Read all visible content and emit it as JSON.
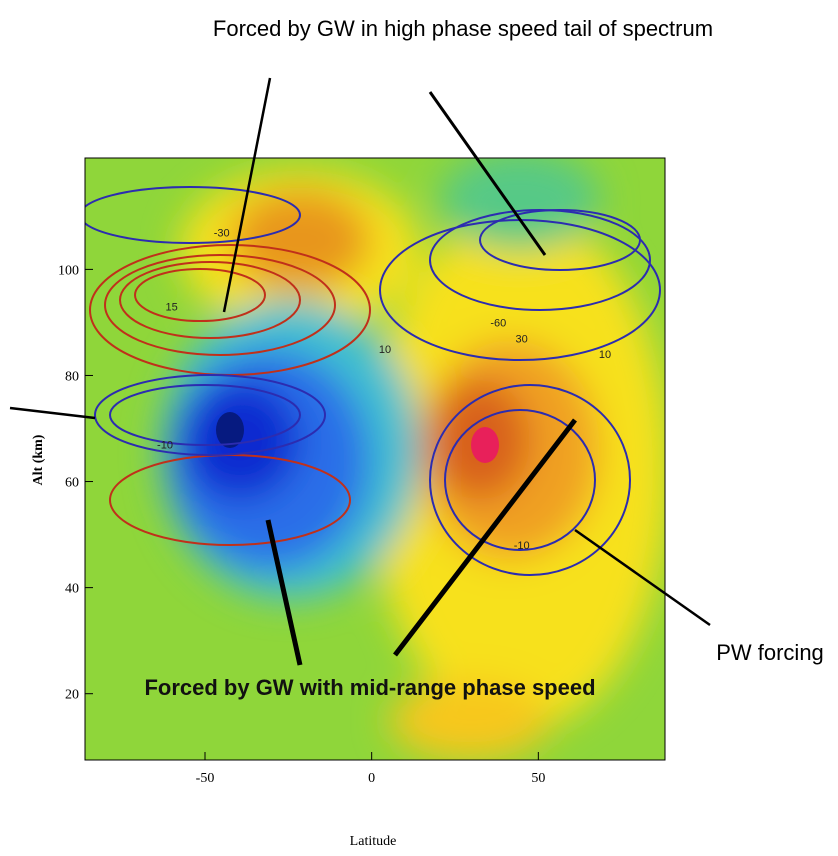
{
  "chart_data": {
    "type": "contour",
    "title": "Forced by GW in high phase speed tail of spectrum",
    "x_label": "Latitude",
    "y_label": "Alt (km)",
    "xlim": [
      -86,
      88
    ],
    "ylim": [
      7.5,
      121
    ],
    "xticks": [
      -50,
      0,
      50
    ],
    "yticks": [
      20,
      40,
      60,
      80,
      100
    ],
    "annotations": [
      "Forced by GW with mid-range phase speed",
      "PW forcing"
    ],
    "contour_labels": [
      {
        "text": "-30",
        "x": -45,
        "y": 107
      },
      {
        "text": "15",
        "x": -60,
        "y": 93
      },
      {
        "text": "-60",
        "x": 38,
        "y": 90
      },
      {
        "text": "30",
        "x": 45,
        "y": 87
      },
      {
        "text": "10",
        "x": 4,
        "y": 85
      },
      {
        "text": "10",
        "x": 70,
        "y": 84
      },
      {
        "text": "-10",
        "x": -62,
        "y": 67
      },
      {
        "text": "-10",
        "x": 45,
        "y": 48
      }
    ]
  }
}
